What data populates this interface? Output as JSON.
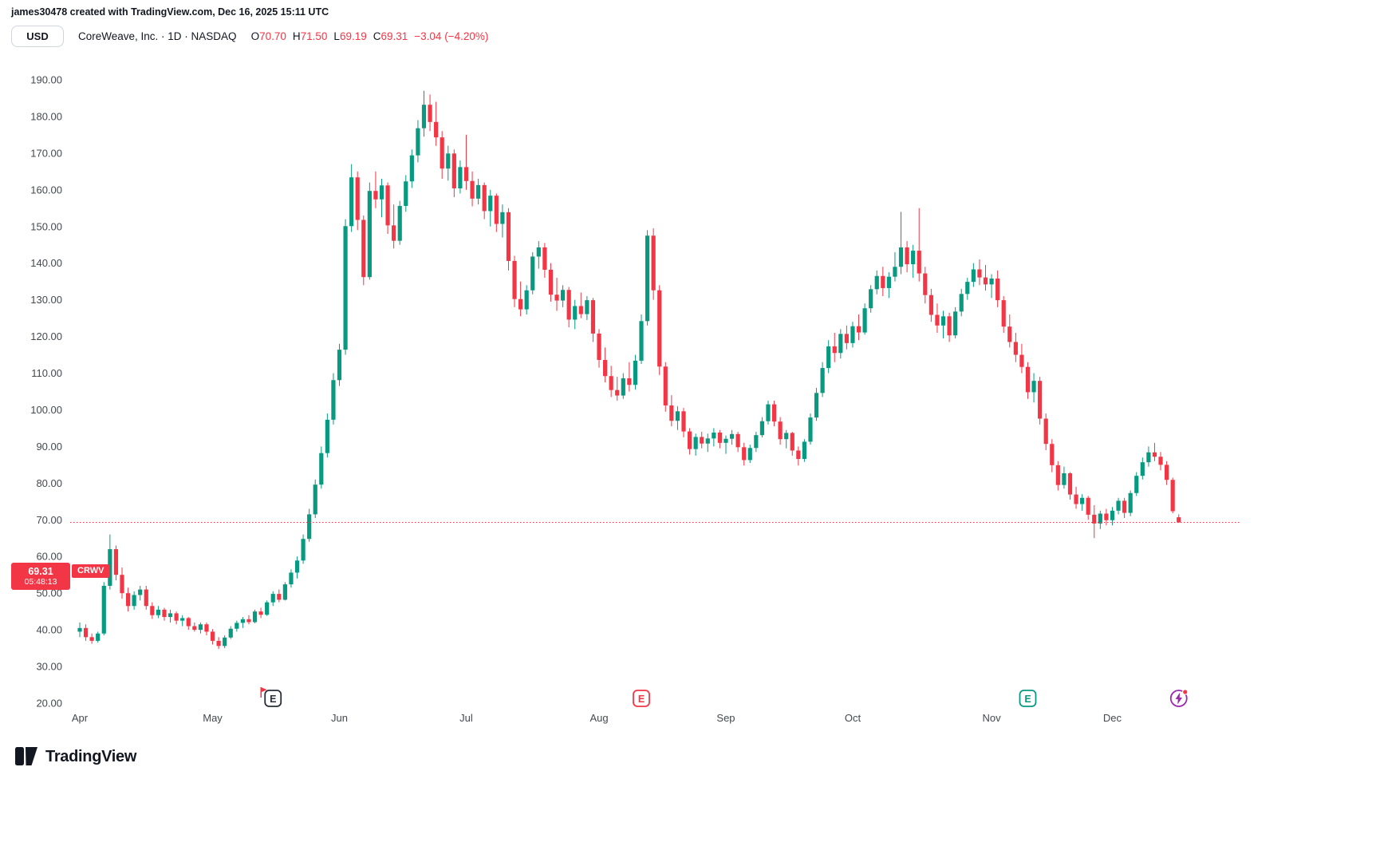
{
  "meta": {
    "attribution": "james30478 created with TradingView.com, Dec 16, 2025 15:11 UTC"
  },
  "header": {
    "currency": "USD",
    "symbol_title": "CoreWeave, Inc. · 1D · NASDAQ",
    "o_label": "O",
    "o_value": "70.70",
    "h_label": "H",
    "h_value": "71.50",
    "l_label": "L",
    "l_value": "69.19",
    "c_label": "C",
    "c_value": "69.31",
    "change": "−3.04 (−4.20%)"
  },
  "price_scale": {
    "ticks": [
      "190.00",
      "180.00",
      "170.00",
      "160.00",
      "150.00",
      "140.00",
      "130.00",
      "120.00",
      "110.00",
      "100.00",
      "90.00",
      "80.00",
      "70.00",
      "60.00",
      "50.00",
      "40.00",
      "30.00",
      "20.00"
    ]
  },
  "price_line": {
    "price": "69.31",
    "countdown": "05:48:13",
    "ticker": "CRWV",
    "value": 69.31,
    "color": "#F23645"
  },
  "markers": [
    {
      "name": "earnings-marker-may",
      "type": "earnings",
      "label": "E",
      "color": "#2A2E39",
      "flag_color": "#F23645",
      "index": 32
    },
    {
      "name": "earnings-marker-aug",
      "type": "earnings",
      "label": "E",
      "color": "#F23645",
      "index": 93
    },
    {
      "name": "earnings-marker-nov",
      "type": "earnings",
      "label": "E",
      "color": "#089981",
      "index": 157
    },
    {
      "name": "power-marker",
      "type": "power",
      "color": "#9C27B0",
      "dot_color": "#F23645",
      "index": 182
    }
  ],
  "footer": {
    "logo_text": "TradingView"
  },
  "chart_data": {
    "type": "candlestick",
    "symbol": "CRWV",
    "title": "CoreWeave, Inc. Daily",
    "up_color": "#089981",
    "down_color": "#F23645",
    "ylim": [
      20,
      190
    ],
    "grid": false,
    "month_starts": [
      {
        "label": "Apr",
        "i": 0
      },
      {
        "label": "May",
        "i": 22
      },
      {
        "label": "Jun",
        "i": 43
      },
      {
        "label": "Jul",
        "i": 64
      },
      {
        "label": "Aug",
        "i": 86
      },
      {
        "label": "Sep",
        "i": 107
      },
      {
        "label": "Oct",
        "i": 128
      },
      {
        "label": "Nov",
        "i": 151
      },
      {
        "label": "Dec",
        "i": 171
      }
    ],
    "candles": [
      [
        39.5,
        42,
        38,
        40.5
      ],
      [
        40.5,
        41.5,
        37,
        38
      ],
      [
        38,
        39,
        36.2,
        37
      ],
      [
        37,
        39.5,
        36.5,
        39
      ],
      [
        39,
        53,
        38.5,
        52
      ],
      [
        52,
        66,
        51,
        62
      ],
      [
        62,
        63,
        53.5,
        55
      ],
      [
        55,
        57,
        48.5,
        50
      ],
      [
        50,
        51.5,
        45,
        46.5
      ],
      [
        46.5,
        50.5,
        45.5,
        49.5
      ],
      [
        49.5,
        52,
        48,
        51
      ],
      [
        51,
        52,
        45.5,
        46.5
      ],
      [
        46.5,
        47.5,
        43,
        44
      ],
      [
        44,
        46.5,
        43.2,
        45.5
      ],
      [
        45.5,
        46,
        42.5,
        43.5
      ],
      [
        43.5,
        45.5,
        42,
        44.5
      ],
      [
        44.5,
        45,
        41.5,
        42.5
      ],
      [
        42.5,
        44,
        41,
        43.2
      ],
      [
        43.2,
        43.5,
        40,
        41
      ],
      [
        41,
        42,
        39.5,
        40
      ],
      [
        40,
        42,
        39,
        41.5
      ],
      [
        41.5,
        42,
        38.5,
        39.5
      ],
      [
        39.5,
        40.2,
        36,
        37
      ],
      [
        37,
        38,
        34.8,
        35.6
      ],
      [
        35.6,
        38.5,
        35,
        37.9
      ],
      [
        37.9,
        41,
        37.5,
        40.3
      ],
      [
        40.3,
        42.5,
        39.5,
        41.9
      ],
      [
        41.9,
        43.5,
        40.5,
        42.9
      ],
      [
        42.9,
        44,
        41.5,
        42.1
      ],
      [
        42.1,
        45.5,
        41.8,
        45
      ],
      [
        45,
        46,
        43.2,
        44.1
      ],
      [
        44.1,
        48,
        43.8,
        47.5
      ],
      [
        47.5,
        50.5,
        46.5,
        49.8
      ],
      [
        49.8,
        51,
        47.5,
        48.2
      ],
      [
        48.2,
        53,
        48,
        52.4
      ],
      [
        52.4,
        56.5,
        51.5,
        55.6
      ],
      [
        55.6,
        60,
        54,
        58.9
      ],
      [
        58.9,
        66,
        58,
        64.8
      ],
      [
        64.8,
        73,
        64,
        71.5
      ],
      [
        71.5,
        81,
        70.5,
        79.6
      ],
      [
        79.6,
        90,
        78.5,
        88.2
      ],
      [
        88.2,
        99,
        87,
        97.3
      ],
      [
        97.3,
        110,
        96,
        108.1
      ],
      [
        108.1,
        118,
        106.5,
        116.4
      ],
      [
        116.4,
        152,
        115,
        150.1
      ],
      [
        150.1,
        167,
        148.5,
        163.4
      ],
      [
        163.4,
        165,
        149,
        151.8
      ],
      [
        151.8,
        153,
        134,
        136.2
      ],
      [
        136.2,
        162,
        135.5,
        159.7
      ],
      [
        159.7,
        165,
        155,
        157.4
      ],
      [
        157.4,
        163,
        152.5,
        161.2
      ],
      [
        161.2,
        162,
        148,
        150.3
      ],
      [
        150.3,
        156,
        144,
        146.1
      ],
      [
        146.1,
        157,
        145,
        155.6
      ],
      [
        155.6,
        164,
        154,
        162.3
      ],
      [
        162.3,
        171,
        160.5,
        169.4
      ],
      [
        169.4,
        179,
        167.5,
        176.8
      ],
      [
        176.8,
        187,
        174.5,
        183.2
      ],
      [
        183.2,
        186,
        176,
        178.5
      ],
      [
        178.5,
        184,
        172,
        174.3
      ],
      [
        174.3,
        176,
        163,
        165.8
      ],
      [
        165.8,
        172,
        162.5,
        169.9
      ],
      [
        169.9,
        171,
        158,
        160.4
      ],
      [
        160.4,
        168,
        159,
        166.2
      ],
      [
        166.2,
        175,
        160,
        162.4
      ],
      [
        162.4,
        165,
        155.5,
        157.6
      ],
      [
        157.6,
        163,
        156,
        161.3
      ],
      [
        161.3,
        162,
        152,
        154.2
      ],
      [
        154.2,
        160,
        150,
        158.4
      ],
      [
        158.4,
        159,
        148.5,
        150.7
      ],
      [
        150.7,
        156,
        147,
        153.9
      ],
      [
        153.9,
        155,
        138,
        140.6
      ],
      [
        140.6,
        142,
        128,
        130.2
      ],
      [
        130.2,
        135,
        125.5,
        127.4
      ],
      [
        127.4,
        134,
        126,
        132.6
      ],
      [
        132.6,
        143,
        131.5,
        141.8
      ],
      [
        141.8,
        146,
        138.5,
        144.3
      ],
      [
        144.3,
        145.5,
        136,
        138.2
      ],
      [
        138.2,
        140,
        129.5,
        131.4
      ],
      [
        131.4,
        136,
        127,
        129.8
      ],
      [
        129.8,
        134,
        128,
        132.7
      ],
      [
        132.7,
        133.5,
        122.5,
        124.6
      ],
      [
        124.6,
        130,
        122,
        128.3
      ],
      [
        128.3,
        132,
        125,
        126.1
      ],
      [
        126.1,
        131,
        124.5,
        129.9
      ],
      [
        129.9,
        130.5,
        118.5,
        120.8
      ],
      [
        120.8,
        122,
        111.5,
        113.6
      ],
      [
        113.6,
        117,
        107.5,
        109.2
      ],
      [
        109.2,
        112,
        103.5,
        105.4
      ],
      [
        105.4,
        109,
        102.5,
        103.9
      ],
      [
        103.9,
        110,
        103,
        108.6
      ],
      [
        108.6,
        113,
        105,
        106.8
      ],
      [
        106.8,
        115,
        105.5,
        113.4
      ],
      [
        113.4,
        126,
        112.5,
        124.2
      ],
      [
        124.2,
        149,
        123,
        147.5
      ],
      [
        147.5,
        149.5,
        130,
        132.6
      ],
      [
        132.6,
        134,
        109.5,
        111.8
      ],
      [
        111.8,
        113,
        99.5,
        101.2
      ],
      [
        101.2,
        104,
        95.5,
        97
      ],
      [
        97,
        101,
        94.5,
        99.6
      ],
      [
        99.6,
        100.5,
        92.5,
        94.1
      ],
      [
        94.1,
        95,
        87.8,
        89.3
      ],
      [
        89.3,
        93.5,
        87.5,
        92.6
      ],
      [
        92.6,
        94,
        89.5,
        90.8
      ],
      [
        90.8,
        93.5,
        88.5,
        92.2
      ],
      [
        92.2,
        95,
        90,
        93.8
      ],
      [
        93.8,
        94.5,
        89.5,
        91
      ],
      [
        91,
        93,
        88,
        92.1
      ],
      [
        92.1,
        94.5,
        90.5,
        93.4
      ],
      [
        93.4,
        94,
        88.5,
        89.8
      ],
      [
        89.8,
        91,
        84.8,
        86.3
      ],
      [
        86.3,
        90.5,
        85.5,
        89.6
      ],
      [
        89.6,
        94,
        88.5,
        93.1
      ],
      [
        93.1,
        98,
        92.5,
        96.9
      ],
      [
        96.9,
        102.5,
        96,
        101.5
      ],
      [
        101.5,
        102.5,
        95.5,
        96.8
      ],
      [
        96.8,
        98,
        90.5,
        92
      ],
      [
        92,
        94.5,
        89.5,
        93.7
      ],
      [
        93.7,
        94,
        87.5,
        88.9
      ],
      [
        88.9,
        90,
        84.8,
        86.6
      ],
      [
        86.6,
        92,
        85.8,
        91.3
      ],
      [
        91.3,
        99,
        90.5,
        97.9
      ],
      [
        97.9,
        106,
        97,
        104.6
      ],
      [
        104.6,
        113,
        103.5,
        111.4
      ],
      [
        111.4,
        119,
        110,
        117.3
      ],
      [
        117.3,
        121,
        113,
        115.5
      ],
      [
        115.5,
        122,
        114,
        120.7
      ],
      [
        120.7,
        123,
        116.5,
        118.2
      ],
      [
        118.2,
        124,
        117,
        122.8
      ],
      [
        122.8,
        126,
        119,
        121.1
      ],
      [
        121.1,
        129,
        120.5,
        127.7
      ],
      [
        127.7,
        134,
        126.5,
        132.9
      ],
      [
        132.9,
        138,
        131.5,
        136.5
      ],
      [
        136.5,
        139,
        131,
        133.2
      ],
      [
        133.2,
        137.5,
        130.5,
        136.3
      ],
      [
        136.3,
        143,
        135,
        139
      ],
      [
        139,
        154,
        137,
        144.3
      ],
      [
        144.3,
        146,
        137.5,
        139.7
      ],
      [
        139.7,
        145,
        136,
        143.4
      ],
      [
        143.4,
        155,
        135,
        137.2
      ],
      [
        137.2,
        139,
        129,
        131.3
      ],
      [
        131.3,
        133,
        124,
        125.9
      ],
      [
        125.9,
        129,
        121,
        123
      ],
      [
        123,
        127,
        119.5,
        125.5
      ],
      [
        125.5,
        126.5,
        118.5,
        120.3
      ],
      [
        120.3,
        128,
        119.5,
        126.8
      ],
      [
        126.8,
        133,
        125.5,
        131.6
      ],
      [
        131.6,
        136,
        130,
        134.9
      ],
      [
        134.9,
        140,
        133.5,
        138.3
      ],
      [
        138.3,
        141,
        134,
        136.1
      ],
      [
        136.1,
        139.5,
        132.5,
        134.2
      ],
      [
        134.2,
        137,
        130.5,
        135.8
      ],
      [
        135.8,
        138,
        128,
        129.9
      ],
      [
        129.9,
        131,
        121,
        122.7
      ],
      [
        122.7,
        126,
        117,
        118.5
      ],
      [
        118.5,
        121,
        113,
        115
      ],
      [
        115,
        118,
        110,
        111.7
      ],
      [
        111.7,
        113,
        103,
        104.8
      ],
      [
        104.8,
        110,
        102,
        107.9
      ],
      [
        107.9,
        109,
        96,
        97.6
      ],
      [
        97.6,
        99,
        89,
        90.7
      ],
      [
        90.7,
        92,
        83,
        84.9
      ],
      [
        84.9,
        86,
        78,
        79.5
      ],
      [
        79.5,
        84.5,
        78.5,
        82.7
      ],
      [
        82.7,
        83,
        75.5,
        76.9
      ],
      [
        76.9,
        79,
        73,
        74.3
      ],
      [
        74.3,
        77,
        72.5,
        76
      ],
      [
        76,
        76.5,
        70,
        71.4
      ],
      [
        71.4,
        74,
        65,
        69
      ],
      [
        69,
        72.5,
        67.5,
        71.7
      ],
      [
        71.7,
        73,
        68.5,
        69.9
      ],
      [
        69.9,
        73.5,
        68.5,
        72.5
      ],
      [
        72.5,
        76,
        71.5,
        75.2
      ],
      [
        75.2,
        76,
        70.5,
        71.9
      ],
      [
        71.9,
        78,
        71,
        77.3
      ],
      [
        77.3,
        83,
        76.5,
        82
      ],
      [
        82,
        87,
        81,
        85.7
      ],
      [
        85.7,
        90,
        84.5,
        88.4
      ],
      [
        88.4,
        91,
        86,
        87.2
      ],
      [
        87.2,
        88.5,
        83.5,
        85
      ],
      [
        85,
        86,
        79.5,
        80.9
      ],
      [
        80.9,
        81.5,
        71.8,
        72.35
      ],
      [
        70.7,
        71.5,
        69.19,
        69.31
      ]
    ]
  }
}
